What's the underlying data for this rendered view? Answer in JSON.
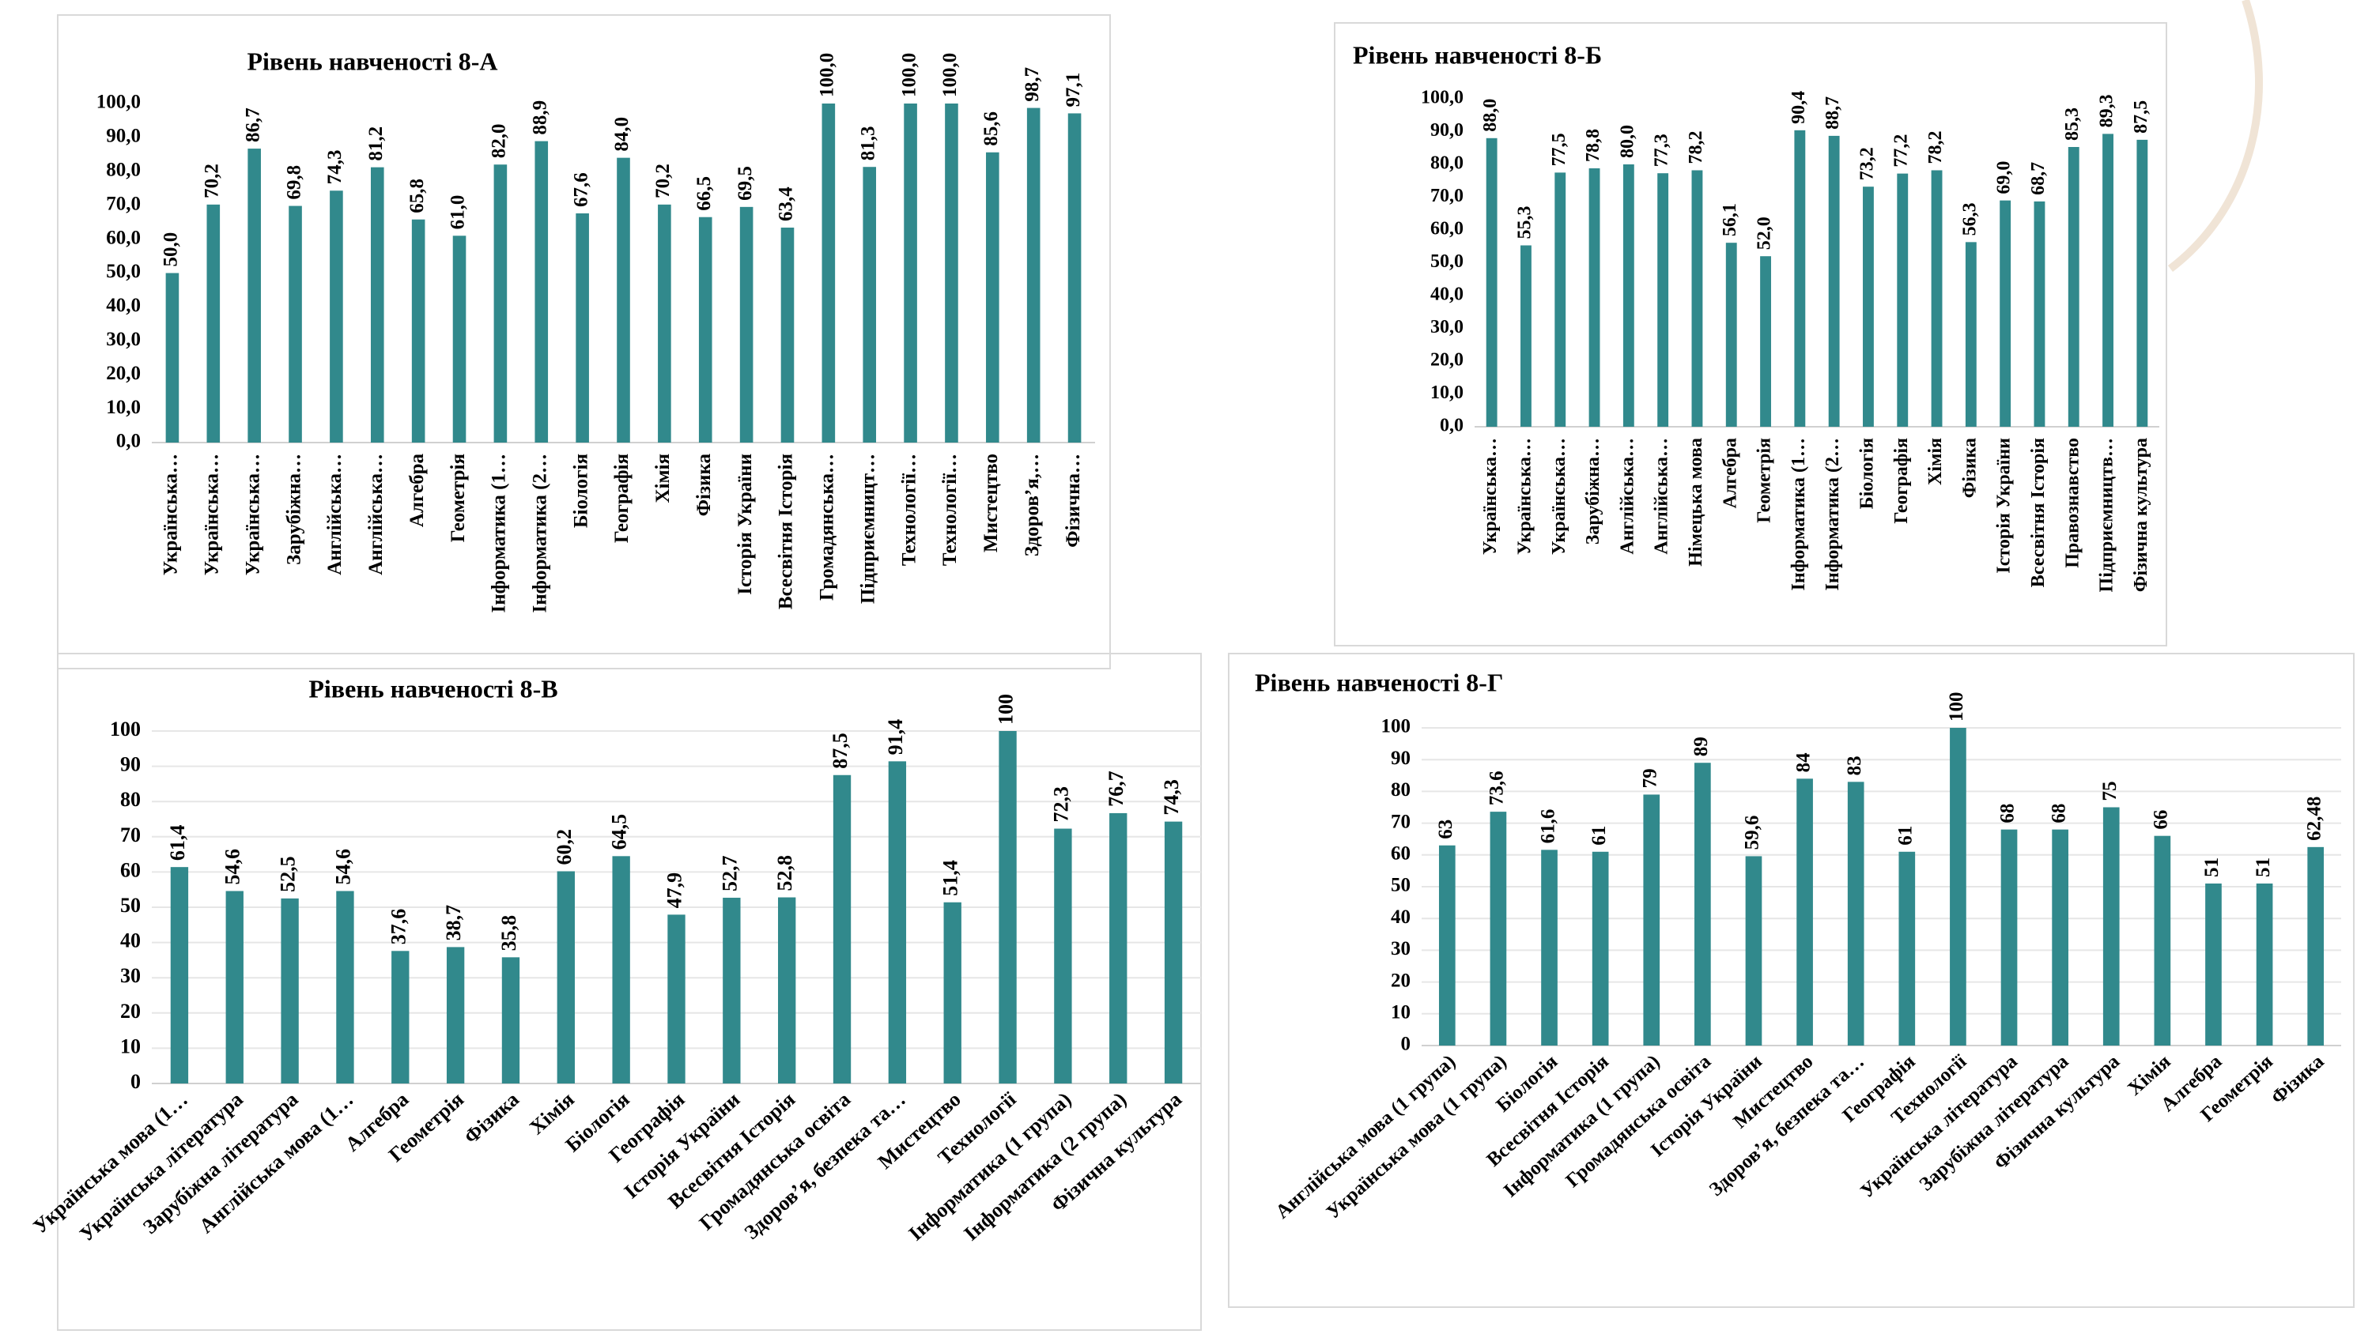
{
  "chart_data": [
    {
      "type": "bar",
      "title": "Рівень навченості 8-А",
      "color": "#31898c",
      "grid": false,
      "categories": [
        "Українська…",
        "Українська…",
        "Українська…",
        "Зарубіжна…",
        "Англійська…",
        "Англійська…",
        "Алгебра",
        "Геометрія",
        "Інформатика (1…",
        "Інформатика (2…",
        "Біологія",
        "Географія",
        "Хімія",
        "Фізика",
        "Історія України",
        "Всесвітня Історія",
        "Громадянська…",
        "Підприємницт…",
        "Технології…",
        "Технології…",
        "Мистецтво",
        "Здоров’я,…",
        "Фізична…"
      ],
      "values": [
        50.0,
        70.2,
        86.7,
        69.8,
        74.3,
        81.2,
        65.8,
        61.0,
        82.0,
        88.9,
        67.6,
        84.0,
        70.2,
        66.5,
        69.5,
        63.4,
        100.0,
        81.3,
        100.0,
        100.0,
        85.6,
        98.7,
        97.1
      ],
      "value_labels": [
        "50,0",
        "70,2",
        "86,7",
        "69,8",
        "74,3",
        "81,2",
        "65,8",
        "61,0",
        "82,0",
        "88,9",
        "67,6",
        "84,0",
        "70,2",
        "66,5",
        "69,5",
        "63,4",
        "100,0",
        "81,3",
        "100,0",
        "100,0",
        "85,6",
        "98,7",
        "97,1"
      ],
      "ylim": [
        0,
        100
      ],
      "yticks": [
        {
          "value": 0,
          "label": "0,0"
        },
        {
          "value": 10,
          "label": "10,0"
        },
        {
          "value": 20,
          "label": "20,0"
        },
        {
          "value": 30,
          "label": "30,0"
        },
        {
          "value": 40,
          "label": "40,0"
        },
        {
          "value": 50,
          "label": "50,0"
        },
        {
          "value": 60,
          "label": "60,0"
        },
        {
          "value": 70,
          "label": "70,0"
        },
        {
          "value": 80,
          "label": "80,0"
        },
        {
          "value": 90,
          "label": "90,0"
        },
        {
          "value": 100,
          "label": "100,0"
        }
      ]
    },
    {
      "type": "bar",
      "title": "Рівень навченості 8-Б",
      "color": "#31898c",
      "grid": false,
      "categories": [
        "Українська…",
        "Українська…",
        "Українська…",
        "Зарубіжна…",
        "Англійська…",
        "Англійська…",
        "Німецька мова",
        "Алгебра",
        "Геометрія",
        "Інформатика (1…",
        "Інформатика (2…",
        "Біологія",
        "Географія",
        "Хімія",
        "Фізика",
        "Історія України",
        "Всесвітня Історія",
        "Правознавство",
        "Підприємництв…",
        "Фізична культура"
      ],
      "values": [
        88.0,
        55.3,
        77.5,
        78.8,
        80.0,
        77.3,
        78.2,
        56.1,
        52.0,
        90.4,
        88.7,
        73.2,
        77.2,
        78.2,
        56.3,
        69.0,
        68.7,
        85.3,
        89.3,
        87.5
      ],
      "value_labels": [
        "88,0",
        "55,3",
        "77,5",
        "78,8",
        "80,0",
        "77,3",
        "78,2",
        "56,1",
        "52,0",
        "90,4",
        "88,7",
        "73,2",
        "77,2",
        "78,2",
        "56,3",
        "69,0",
        "68,7",
        "85,3",
        "89,3",
        "87,5"
      ],
      "ylim": [
        0,
        100
      ],
      "yticks": [
        {
          "value": 0,
          "label": "0,0"
        },
        {
          "value": 10,
          "label": "10,0"
        },
        {
          "value": 20,
          "label": "20,0"
        },
        {
          "value": 30,
          "label": "30,0"
        },
        {
          "value": 40,
          "label": "40,0"
        },
        {
          "value": 50,
          "label": "50,0"
        },
        {
          "value": 60,
          "label": "60,0"
        },
        {
          "value": 70,
          "label": "70,0"
        },
        {
          "value": 80,
          "label": "80,0"
        },
        {
          "value": 90,
          "label": "90,0"
        },
        {
          "value": 100,
          "label": "100,0"
        }
      ]
    },
    {
      "type": "bar",
      "title": "Рівень навченості 8-В",
      "color": "#31898c",
      "grid": true,
      "categories": [
        "Українська мова (1…",
        "Українська література",
        "Зарубіжна література",
        "Англійська мова (1…",
        "Алгебра",
        "Геометрія",
        "Фізика",
        "Хімія",
        "Біологія",
        "Географія",
        "Історія України",
        "Всесвітня Історія",
        "Громадянська освіта",
        "Здоров’я, безпека та…",
        "Мистецтво",
        "Технології",
        "Інформатика (1 група)",
        "Інформатика (2 група)",
        "Фізична культура"
      ],
      "values": [
        61.4,
        54.6,
        52.5,
        54.6,
        37.6,
        38.7,
        35.8,
        60.2,
        64.5,
        47.9,
        52.7,
        52.8,
        87.5,
        91.4,
        51.4,
        100,
        72.3,
        76.7,
        74.3
      ],
      "value_labels": [
        "61,4",
        "54,6",
        "52,5",
        "54,6",
        "37,6",
        "38,7",
        "35,8",
        "60,2",
        "64,5",
        "47,9",
        "52,7",
        "52,8",
        "87,5",
        "91,4",
        "51,4",
        "100",
        "72,3",
        "76,7",
        "74,3"
      ],
      "ylim": [
        0,
        100
      ],
      "yticks": [
        0,
        10,
        20,
        30,
        40,
        50,
        60,
        70,
        80,
        90,
        100
      ]
    },
    {
      "type": "bar",
      "title": "Рівень навченості 8-Г",
      "color": "#31898c",
      "grid": true,
      "categories": [
        "Англійська мова (1 група)",
        "Українська мова (1 група)",
        "Біологія",
        "Всесвітня Історія",
        "Інформатика (1 група)",
        "Громадянська освіта",
        "Історія України",
        "Мистецтво",
        "Здоров’я, безпека та…",
        "Географія",
        "Технології",
        "Українська література",
        "Зарубіжна література",
        "Фізична культура",
        "Хімія",
        "Алгебра",
        "Геометрія",
        "Фізика"
      ],
      "values": [
        63,
        73.6,
        61.6,
        61,
        79,
        89,
        59.6,
        84,
        83,
        61,
        100,
        68,
        68,
        75,
        66,
        51,
        51,
        62.48
      ],
      "value_labels": [
        "63",
        "73,6",
        "61,6",
        "61",
        "79",
        "89",
        "59,6",
        "84",
        "83",
        "61",
        "100",
        "68",
        "68",
        "75",
        "66",
        "51",
        "51",
        "62,48"
      ],
      "ylim": [
        0,
        100
      ],
      "yticks": [
        0,
        10,
        20,
        30,
        40,
        50,
        60,
        70,
        80,
        90,
        100
      ]
    }
  ]
}
